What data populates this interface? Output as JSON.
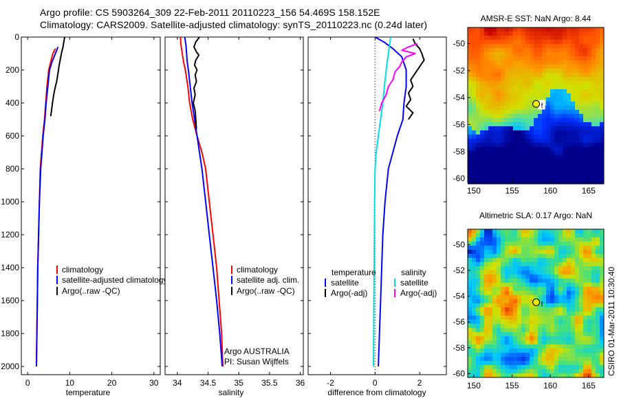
{
  "header": {
    "line1": "Argo profile: CS 5903264_309 22-Feb-2011 20110223_156 54.469S 158.152E",
    "line2": "Climatology: CARS2009. Satellite-adjusted climatology: synTS_20110223.nc (0.24d later)"
  },
  "footer_side": "CSIRO 01-Mar-2011 10:30:40",
  "colors": {
    "climatology": "#ff0000",
    "satellite": "#0000ff",
    "argo": "#000000",
    "satellite_salinity": "#00e0e0",
    "argo_salinity_adj": "#ff00ff"
  },
  "chart_data": [
    {
      "type": "line",
      "id": "temperature",
      "xlabel": "temperature",
      "ylabel": "",
      "xlim": [
        -1.5,
        31.5
      ],
      "ylim": [
        2050,
        0
      ],
      "x_ticks": [
        0,
        10,
        20,
        30
      ],
      "y_ticks": [
        0,
        200,
        400,
        600,
        800,
        1000,
        1200,
        1400,
        1600,
        1800,
        2000
      ],
      "legend": [
        "climatology",
        "satellite-adjusted climatology",
        "Argo(..raw -QC)"
      ],
      "series": [
        {
          "name": "climatology",
          "color": "#ff0000",
          "points": [
            [
              6.6,
              70
            ],
            [
              6.0,
              100
            ],
            [
              5.5,
              150
            ],
            [
              5.0,
              200
            ],
            [
              4.6,
              300
            ],
            [
              4.3,
              400
            ],
            [
              4.0,
              500
            ],
            [
              3.6,
              600
            ],
            [
              3.3,
              700
            ],
            [
              3.0,
              800
            ],
            [
              2.8,
              1000
            ],
            [
              2.6,
              1200
            ],
            [
              2.4,
              1400
            ],
            [
              2.3,
              1600
            ],
            [
              2.2,
              1800
            ],
            [
              2.1,
              2000
            ]
          ]
        },
        {
          "name": "satellite-adjusted climatology",
          "color": "#0000ff",
          "points": [
            [
              7.2,
              60
            ],
            [
              6.6,
              100
            ],
            [
              5.8,
              150
            ],
            [
              5.2,
              200
            ],
            [
              4.8,
              300
            ],
            [
              4.4,
              400
            ],
            [
              4.1,
              500
            ],
            [
              3.7,
              600
            ],
            [
              3.4,
              700
            ],
            [
              3.1,
              800
            ],
            [
              2.8,
              1000
            ],
            [
              2.6,
              1200
            ],
            [
              2.4,
              1400
            ],
            [
              2.3,
              1600
            ],
            [
              2.2,
              1800
            ],
            [
              2.1,
              2000
            ]
          ]
        },
        {
          "name": "Argo(..raw -QC)",
          "color": "#000000",
          "points": [
            [
              8.8,
              0
            ],
            [
              8.6,
              30
            ],
            [
              8.4,
              60
            ],
            [
              8.1,
              90
            ],
            [
              7.8,
              130
            ],
            [
              7.5,
              170
            ],
            [
              7.2,
              220
            ],
            [
              6.9,
              270
            ],
            [
              6.5,
              310
            ],
            [
              6.2,
              350
            ],
            [
              5.9,
              400
            ],
            [
              5.7,
              440
            ],
            [
              5.5,
              480
            ]
          ]
        }
      ]
    },
    {
      "type": "line",
      "id": "salinity",
      "xlabel": "salinity",
      "ylabel": "",
      "xlim": [
        33.8,
        36.05
      ],
      "ylim": [
        2050,
        0
      ],
      "x_ticks": [
        34,
        34.5,
        35,
        35.5,
        36
      ],
      "legend": [
        "climatology",
        "satellite adj. clim.",
        "Argo(..raw -QC)"
      ],
      "annotations": [
        "Argo AUSTRALIA",
        "PI: Susan Wijffels"
      ],
      "series": [
        {
          "name": "climatology",
          "color": "#ff0000",
          "points": [
            [
              34.05,
              0
            ],
            [
              34.06,
              50
            ],
            [
              34.08,
              100
            ],
            [
              34.1,
              150
            ],
            [
              34.13,
              200
            ],
            [
              34.17,
              300
            ],
            [
              34.2,
              400
            ],
            [
              34.25,
              500
            ],
            [
              34.32,
              600
            ],
            [
              34.4,
              700
            ],
            [
              34.46,
              800
            ],
            [
              34.52,
              1000
            ],
            [
              34.58,
              1200
            ],
            [
              34.64,
              1400
            ],
            [
              34.68,
              1600
            ],
            [
              34.72,
              1800
            ],
            [
              34.74,
              2000
            ]
          ]
        },
        {
          "name": "satellite adj. clim.",
          "color": "#0000ff",
          "points": [
            [
              34.12,
              0
            ],
            [
              34.14,
              50
            ],
            [
              34.15,
              100
            ],
            [
              34.16,
              150
            ],
            [
              34.18,
              200
            ],
            [
              34.21,
              300
            ],
            [
              34.24,
              400
            ],
            [
              34.28,
              500
            ],
            [
              34.32,
              600
            ],
            [
              34.36,
              700
            ],
            [
              34.4,
              800
            ],
            [
              34.46,
              1000
            ],
            [
              34.52,
              1200
            ],
            [
              34.58,
              1400
            ],
            [
              34.64,
              1600
            ],
            [
              34.69,
              1800
            ],
            [
              34.73,
              2000
            ]
          ]
        },
        {
          "name": "Argo(..raw -QC)",
          "color": "#000000",
          "points": [
            [
              34.36,
              0
            ],
            [
              34.3,
              30
            ],
            [
              34.27,
              60
            ],
            [
              34.31,
              90
            ],
            [
              34.35,
              110
            ],
            [
              34.3,
              140
            ],
            [
              34.28,
              170
            ],
            [
              34.32,
              200
            ],
            [
              34.29,
              230
            ],
            [
              34.31,
              270
            ],
            [
              34.27,
              310
            ],
            [
              34.29,
              350
            ],
            [
              34.26,
              400
            ],
            [
              34.29,
              450
            ],
            [
              34.3,
              500
            ],
            [
              34.31,
              560
            ]
          ]
        }
      ]
    },
    {
      "type": "line",
      "id": "difference",
      "xlabel": "difference from climatology",
      "ylabel": "",
      "xlim": [
        -3.0,
        3.2
      ],
      "ylim": [
        2050,
        0
      ],
      "x_ticks": [
        -2,
        0,
        2
      ],
      "legend_titles": [
        "temperature",
        "salinity"
      ],
      "legend": [
        "satellite",
        "Argo(-adj)",
        "satellite",
        "Argo(-adj)"
      ],
      "series": [
        {
          "name": "satellite",
          "group": "temperature",
          "color": "#0000ff",
          "points": [
            [
              0.0,
              0
            ],
            [
              0.4,
              30
            ],
            [
              0.8,
              70
            ],
            [
              1.2,
              120
            ],
            [
              1.4,
              200
            ],
            [
              1.4,
              300
            ],
            [
              1.3,
              400
            ],
            [
              1.25,
              500
            ],
            [
              1.0,
              600
            ],
            [
              0.8,
              700
            ],
            [
              0.6,
              800
            ],
            [
              0.45,
              1000
            ],
            [
              0.35,
              1200
            ],
            [
              0.3,
              1400
            ],
            [
              0.25,
              1600
            ],
            [
              0.2,
              1800
            ],
            [
              0.15,
              2000
            ]
          ]
        },
        {
          "name": "Argo(-adj)",
          "group": "temperature",
          "color": "#000000",
          "points": [
            [
              1.7,
              10
            ],
            [
              1.8,
              40
            ],
            [
              2.0,
              70
            ],
            [
              2.1,
              100
            ],
            [
              2.2,
              140
            ],
            [
              2.0,
              180
            ],
            [
              1.8,
              220
            ],
            [
              1.6,
              260
            ],
            [
              1.7,
              300
            ],
            [
              1.5,
              340
            ],
            [
              1.6,
              380
            ],
            [
              1.4,
              420
            ],
            [
              1.7,
              460
            ],
            [
              1.5,
              500
            ]
          ]
        },
        {
          "name": "satellite",
          "group": "salinity",
          "color": "#00e0e0",
          "points": [
            [
              0.7,
              0
            ],
            [
              0.65,
              50
            ],
            [
              0.6,
              100
            ],
            [
              0.55,
              150
            ],
            [
              0.5,
              200
            ],
            [
              0.42,
              300
            ],
            [
              0.35,
              400
            ],
            [
              0.25,
              500
            ],
            [
              0.15,
              600
            ],
            [
              0.05,
              700
            ],
            [
              0.0,
              800
            ],
            [
              -0.02,
              1000
            ],
            [
              -0.03,
              1200
            ],
            [
              -0.04,
              1400
            ],
            [
              -0.05,
              1600
            ],
            [
              -0.06,
              1800
            ],
            [
              -0.07,
              2000
            ]
          ]
        },
        {
          "name": "Argo(-adj)",
          "group": "salinity",
          "color": "#ff00ff",
          "points": [
            [
              1.9,
              40
            ],
            [
              1.5,
              60
            ],
            [
              1.2,
              80
            ],
            [
              1.8,
              100
            ],
            [
              1.4,
              120
            ],
            [
              1.2,
              150
            ],
            [
              1.1,
              180
            ],
            [
              0.9,
              210
            ],
            [
              0.8,
              260
            ],
            [
              0.6,
              300
            ],
            [
              0.5,
              350
            ],
            [
              0.3,
              400
            ],
            [
              0.2,
              450
            ]
          ]
        }
      ]
    },
    {
      "type": "heatmap",
      "id": "amsr_sst",
      "title": "AMSR-E SST: NaN Argo: 8.44",
      "xlim": [
        149.2,
        167
      ],
      "ylim": [
        -60.3,
        -48.8
      ],
      "x_ticks": [
        150,
        155,
        160,
        165
      ],
      "y_ticks": [
        -50,
        -52,
        -54,
        -56,
        -58,
        -60
      ],
      "float_position": [
        158.152,
        -54.469
      ],
      "float_label": "f",
      "colors": [
        "#00008b",
        "#0030ff",
        "#00c0ff",
        "#50e0a0",
        "#d0e000",
        "#ff9000",
        "#ff5000",
        "#c00000"
      ]
    },
    {
      "type": "heatmap",
      "id": "altimetric_sla",
      "title": "Altimetric SLA: 0.17 Argo: NaN",
      "xlim": [
        149.2,
        167
      ],
      "ylim": [
        -60.3,
        -48.8
      ],
      "x_ticks": [
        150,
        155,
        160,
        165
      ],
      "y_ticks": [
        -50,
        -52,
        -54,
        -56,
        -58,
        -60
      ],
      "float_position": [
        158.152,
        -54.469
      ],
      "float_label": "f",
      "colors": [
        "#00008b",
        "#0050ff",
        "#00c8ff",
        "#40e080",
        "#d0e000",
        "#ff9000",
        "#e02000",
        "#a00000"
      ]
    }
  ]
}
